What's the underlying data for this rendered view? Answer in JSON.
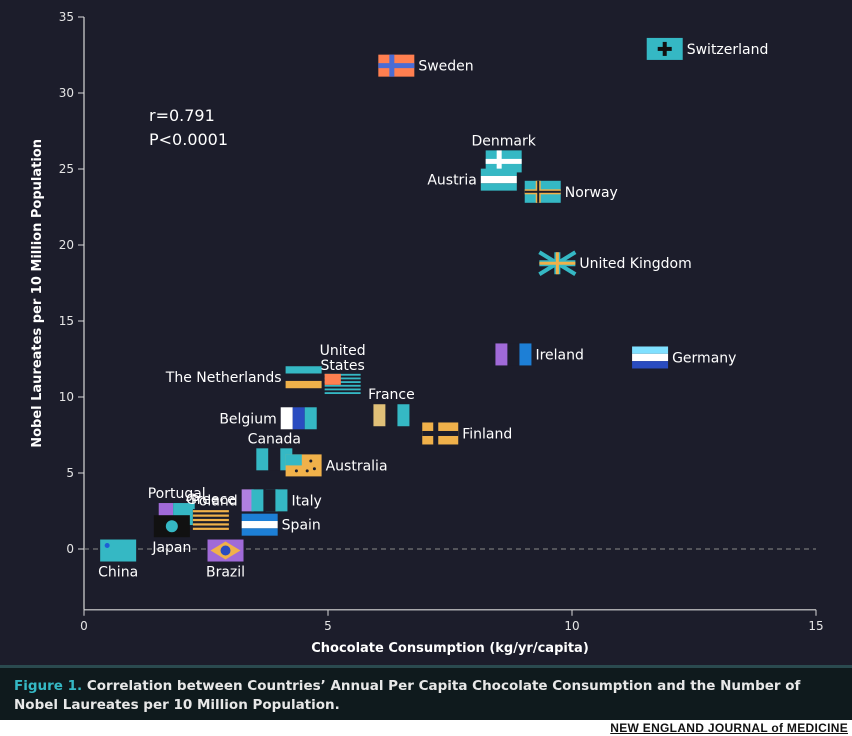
{
  "chart_data": {
    "type": "scatter",
    "xlabel": "Chocolate Consumption (kg/yr/capita)",
    "ylabel": "Nobel Laureates per 10 Million Population",
    "xlim": [
      0,
      15
    ],
    "ylim": [
      -4,
      35
    ],
    "xticks": [
      0,
      5,
      10,
      15
    ],
    "yticks": [
      0,
      5,
      10,
      15,
      20,
      25,
      30,
      35
    ],
    "grid": false,
    "reference_line_y": 0,
    "annotation": {
      "r": "r=0.791",
      "p": "P<0.0001"
    },
    "points": [
      {
        "name": "Switzerland",
        "x": 11.9,
        "y": 32.9,
        "colors": [
          "#35b8c4",
          "#111111"
        ],
        "flag": "cross"
      },
      {
        "name": "Sweden",
        "x": 6.4,
        "y": 31.8,
        "colors": [
          "#ff7f50",
          "#4a6cd4"
        ],
        "flag": "nordic"
      },
      {
        "name": "Denmark",
        "x": 8.6,
        "y": 25.5,
        "colors": [
          "#35b8c4",
          "#ffffff"
        ],
        "flag": "nordic"
      },
      {
        "name": "Austria",
        "x": 8.5,
        "y": 24.3,
        "colors": [
          "#35b8c4",
          "#ffffff",
          "#35b8c4"
        ],
        "flag": "hstripes"
      },
      {
        "name": "Norway",
        "x": 9.4,
        "y": 23.5,
        "colors": [
          "#35b8c4",
          "#f0b14a",
          "#1c1d2b"
        ],
        "flag": "nordic"
      },
      {
        "name": "United Kingdom",
        "x": 9.7,
        "y": 18.8,
        "colors": [
          "#35b8c4",
          "#f0b14a"
        ],
        "flag": "union"
      },
      {
        "name": "Ireland",
        "x": 8.8,
        "y": 12.8,
        "colors": [
          "#a06ad8",
          "#1c1d2b",
          "#1d7fd6"
        ],
        "flag": "vstripes"
      },
      {
        "name": "Germany",
        "x": 11.6,
        "y": 12.6,
        "colors": [
          "#7fe0ff",
          "#ffffff",
          "#2a4cc0"
        ],
        "flag": "hstripes"
      },
      {
        "name": "United States",
        "x": 5.3,
        "y": 10.8,
        "colors": [
          "#ff7f50",
          "#35b8c4"
        ],
        "flag": "stars-stripes"
      },
      {
        "name": "The Netherlands",
        "x": 4.5,
        "y": 11.3,
        "colors": [
          "#35b8c4",
          "#1c1d2b",
          "#f0b14a"
        ],
        "flag": "hstripes"
      },
      {
        "name": "France",
        "x": 6.3,
        "y": 8.8,
        "colors": [
          "#e0c078",
          "#1c1d2b",
          "#35b8c4"
        ],
        "flag": "vstripes"
      },
      {
        "name": "Belgium",
        "x": 4.4,
        "y": 8.6,
        "colors": [
          "#ffffff",
          "#2a4cc0",
          "#35b8c4"
        ],
        "flag": "vstripes"
      },
      {
        "name": "Finland",
        "x": 7.3,
        "y": 7.6,
        "colors": [
          "#f0b14a",
          "#1c1d2b"
        ],
        "flag": "nordic"
      },
      {
        "name": "Canada",
        "x": 3.9,
        "y": 5.9,
        "colors": [
          "#35b8c4",
          "#1c1d2b",
          "#35b8c4"
        ],
        "flag": "vstripes"
      },
      {
        "name": "Australia",
        "x": 4.5,
        "y": 5.5,
        "colors": [
          "#f0b14a",
          "#35b8c4"
        ],
        "flag": "southern"
      },
      {
        "name": "Poland",
        "x": 3.6,
        "y": 3.2,
        "colors": [
          "#b080e0",
          "#1c1d2b",
          "#35b8c4"
        ],
        "flag": "vstripes"
      },
      {
        "name": "Italy",
        "x": 3.8,
        "y": 3.2,
        "colors": [
          "#35b8c4",
          "#1c1d2b",
          "#35b8c4"
        ],
        "flag": "vstripes"
      },
      {
        "name": "Portugal",
        "x": 1.9,
        "y": 2.3,
        "colors": [
          "#a06ad8",
          "#35b8c4"
        ],
        "flag": "vstripes2"
      },
      {
        "name": "Greece",
        "x": 2.6,
        "y": 1.9,
        "colors": [
          "#f0b14a",
          "#1c1d2b"
        ],
        "flag": "stripes"
      },
      {
        "name": "Spain",
        "x": 3.6,
        "y": 1.6,
        "colors": [
          "#1d7fd6",
          "#ffffff",
          "#1d7fd6"
        ],
        "flag": "hstripes"
      },
      {
        "name": "Japan",
        "x": 1.8,
        "y": 1.5,
        "colors": [
          "#111111",
          "#35b8c4"
        ],
        "flag": "disc"
      },
      {
        "name": "Brazil",
        "x": 2.9,
        "y": -0.1,
        "colors": [
          "#a06ad8",
          "#f0b14a",
          "#2a4cc0"
        ],
        "flag": "diamond"
      },
      {
        "name": "China",
        "x": 0.7,
        "y": -0.1,
        "colors": [
          "#35b8c4",
          "#1d5fd6"
        ],
        "flag": "star"
      }
    ]
  },
  "caption": {
    "figure_label": "Figure 1.",
    "text": " Correlation between Countries’ Annual Per Capita Chocolate Consumption and the Number of Nobel Laureates per 10 Million Population."
  },
  "footer": {
    "journal": "NEW ENGLAND JOURNAL of MEDICINE"
  },
  "colors": {
    "background": "#1c1d2b",
    "axis": "#d8d8d8",
    "accent": "#35b8c4",
    "text": "#ffffff"
  }
}
